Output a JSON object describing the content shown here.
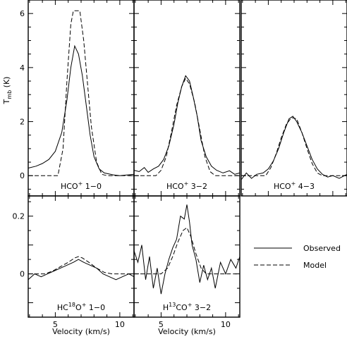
{
  "chart_data": {
    "type": "line",
    "x_ticks": [
      5,
      10
    ],
    "xlabel": "Velocity (km/s)",
    "ylabel_main": "T",
    "ylabel_sub": "mb",
    "ylabel_unit": "(K)",
    "legend": [
      {
        "label": "Observed",
        "style": "solid"
      },
      {
        "label": "Model",
        "style": "dashed"
      }
    ],
    "panels": [
      {
        "row": 0,
        "col": 0,
        "label_parts": [
          "HCO",
          "+",
          " 1−0"
        ],
        "xlim": [
          2.9,
          11.1
        ],
        "ylim": [
          -0.75,
          6.5
        ],
        "y_ticks": [
          0,
          2,
          4,
          6
        ],
        "observed": [
          [
            2.9,
            0.28
          ],
          [
            3.5,
            0.35
          ],
          [
            4.0,
            0.45
          ],
          [
            4.5,
            0.6
          ],
          [
            5.0,
            0.9
          ],
          [
            5.5,
            1.6
          ],
          [
            5.9,
            2.8
          ],
          [
            6.2,
            4.0
          ],
          [
            6.5,
            4.8
          ],
          [
            6.8,
            4.5
          ],
          [
            7.1,
            3.7
          ],
          [
            7.4,
            2.6
          ],
          [
            7.7,
            1.5
          ],
          [
            8.0,
            0.7
          ],
          [
            8.4,
            0.25
          ],
          [
            8.8,
            0.1
          ],
          [
            9.5,
            0.03
          ],
          [
            10.0,
            0.0
          ],
          [
            11.1,
            0.05
          ]
        ],
        "model": [
          [
            2.9,
            0.0
          ],
          [
            5.2,
            0.0
          ],
          [
            5.6,
            1.0
          ],
          [
            5.9,
            3.5
          ],
          [
            6.2,
            5.6
          ],
          [
            6.4,
            6.1
          ],
          [
            6.9,
            6.1
          ],
          [
            7.2,
            5.0
          ],
          [
            7.5,
            3.4
          ],
          [
            7.8,
            1.8
          ],
          [
            8.2,
            0.5
          ],
          [
            8.6,
            0.05
          ],
          [
            9.0,
            0.0
          ],
          [
            11.1,
            0.0
          ]
        ]
      },
      {
        "row": 0,
        "col": 1,
        "label_parts": [
          "HCO",
          "+",
          " 3−2"
        ],
        "xlim": [
          2.9,
          11.1
        ],
        "ylim": [
          -0.75,
          6.5
        ],
        "observed": [
          [
            2.9,
            0.2
          ],
          [
            3.3,
            0.15
          ],
          [
            3.7,
            0.3
          ],
          [
            4.0,
            0.12
          ],
          [
            4.4,
            0.25
          ],
          [
            4.8,
            0.35
          ],
          [
            5.2,
            0.6
          ],
          [
            5.6,
            1.1
          ],
          [
            6.0,
            1.9
          ],
          [
            6.3,
            2.7
          ],
          [
            6.6,
            3.3
          ],
          [
            6.9,
            3.7
          ],
          [
            7.2,
            3.5
          ],
          [
            7.5,
            2.9
          ],
          [
            7.8,
            2.2
          ],
          [
            8.1,
            1.3
          ],
          [
            8.5,
            0.7
          ],
          [
            8.9,
            0.35
          ],
          [
            9.3,
            0.2
          ],
          [
            9.8,
            0.1
          ],
          [
            10.3,
            0.18
          ],
          [
            10.7,
            0.05
          ],
          [
            11.1,
            0.1
          ]
        ],
        "model": [
          [
            2.9,
            0.0
          ],
          [
            4.6,
            0.0
          ],
          [
            5.0,
            0.2
          ],
          [
            5.4,
            0.7
          ],
          [
            5.8,
            1.6
          ],
          [
            6.2,
            2.6
          ],
          [
            6.6,
            3.3
          ],
          [
            6.9,
            3.6
          ],
          [
            7.2,
            3.4
          ],
          [
            7.6,
            2.7
          ],
          [
            8.0,
            1.7
          ],
          [
            8.4,
            0.7
          ],
          [
            8.8,
            0.15
          ],
          [
            9.2,
            0.0
          ],
          [
            11.1,
            0.0
          ]
        ]
      },
      {
        "row": 0,
        "col": 2,
        "label_parts": [
          "HCO",
          "+",
          " 4−3"
        ],
        "xlim": [
          2.9,
          11.1
        ],
        "ylim": [
          -0.75,
          6.5
        ],
        "observed": [
          [
            2.9,
            -0.15
          ],
          [
            3.3,
            0.1
          ],
          [
            3.7,
            -0.1
          ],
          [
            4.1,
            0.05
          ],
          [
            4.6,
            0.1
          ],
          [
            5.0,
            0.25
          ],
          [
            5.4,
            0.55
          ],
          [
            5.8,
            1.0
          ],
          [
            6.2,
            1.6
          ],
          [
            6.6,
            2.1
          ],
          [
            6.9,
            2.2
          ],
          [
            7.2,
            2.0
          ],
          [
            7.6,
            1.6
          ],
          [
            8.0,
            1.1
          ],
          [
            8.4,
            0.6
          ],
          [
            8.8,
            0.25
          ],
          [
            9.2,
            0.05
          ],
          [
            9.6,
            -0.05
          ],
          [
            10.0,
            0.0
          ],
          [
            10.5,
            -0.1
          ],
          [
            11.1,
            0.05
          ]
        ],
        "model": [
          [
            2.9,
            0.0
          ],
          [
            4.8,
            0.0
          ],
          [
            5.2,
            0.3
          ],
          [
            5.6,
            0.8
          ],
          [
            6.0,
            1.4
          ],
          [
            6.4,
            1.9
          ],
          [
            6.8,
            2.15
          ],
          [
            7.2,
            2.1
          ],
          [
            7.6,
            1.6
          ],
          [
            8.0,
            1.0
          ],
          [
            8.4,
            0.45
          ],
          [
            8.8,
            0.1
          ],
          [
            9.2,
            0.0
          ],
          [
            11.1,
            0.0
          ]
        ]
      },
      {
        "row": 1,
        "col": 0,
        "label_parts": [
          "HC",
          "18",
          "O",
          "+",
          " 1−0"
        ],
        "xlim": [
          2.9,
          11.1
        ],
        "ylim": [
          -0.15,
          0.27
        ],
        "y_ticks": [
          0,
          0.2
        ],
        "observed": [
          [
            2.9,
            -0.02
          ],
          [
            3.4,
            0.0
          ],
          [
            3.9,
            -0.01
          ],
          [
            4.4,
            0.0
          ],
          [
            4.9,
            0.01
          ],
          [
            5.4,
            0.02
          ],
          [
            5.9,
            0.03
          ],
          [
            6.4,
            0.04
          ],
          [
            6.8,
            0.05
          ],
          [
            7.2,
            0.04
          ],
          [
            7.7,
            0.03
          ],
          [
            8.2,
            0.02
          ],
          [
            8.7,
            0.0
          ],
          [
            9.2,
            -0.01
          ],
          [
            9.7,
            -0.02
          ],
          [
            10.2,
            -0.01
          ],
          [
            10.7,
            0.0
          ],
          [
            11.1,
            -0.01
          ]
        ],
        "model": [
          [
            2.9,
            0.0
          ],
          [
            4.2,
            0.0
          ],
          [
            4.8,
            0.01
          ],
          [
            5.4,
            0.025
          ],
          [
            6.0,
            0.04
          ],
          [
            6.5,
            0.055
          ],
          [
            6.8,
            0.06
          ],
          [
            7.1,
            0.055
          ],
          [
            7.6,
            0.04
          ],
          [
            8.2,
            0.02
          ],
          [
            8.8,
            0.005
          ],
          [
            9.4,
            0.0
          ],
          [
            11.1,
            0.0
          ]
        ]
      },
      {
        "row": 1,
        "col": 1,
        "label_parts": [
          "H",
          "13",
          "CO",
          "+",
          " 3−2"
        ],
        "xlim": [
          2.9,
          11.1
        ],
        "ylim": [
          -0.15,
          0.27
        ],
        "observed": [
          [
            2.9,
            0.08
          ],
          [
            3.2,
            0.04
          ],
          [
            3.5,
            0.1
          ],
          [
            3.8,
            -0.02
          ],
          [
            4.1,
            0.06
          ],
          [
            4.4,
            -0.05
          ],
          [
            4.7,
            0.02
          ],
          [
            5.0,
            -0.07
          ],
          [
            5.3,
            0.0
          ],
          [
            5.6,
            0.05
          ],
          [
            5.9,
            0.09
          ],
          [
            6.2,
            0.12
          ],
          [
            6.5,
            0.2
          ],
          [
            6.8,
            0.19
          ],
          [
            7.0,
            0.24
          ],
          [
            7.2,
            0.18
          ],
          [
            7.4,
            0.1
          ],
          [
            7.7,
            0.05
          ],
          [
            8.0,
            -0.03
          ],
          [
            8.3,
            0.03
          ],
          [
            8.6,
            -0.02
          ],
          [
            8.9,
            0.02
          ],
          [
            9.2,
            -0.05
          ],
          [
            9.6,
            0.04
          ],
          [
            10.0,
            0.0
          ],
          [
            10.4,
            0.05
          ],
          [
            10.8,
            0.02
          ],
          [
            11.1,
            0.06
          ]
        ],
        "model": [
          [
            2.9,
            0.0
          ],
          [
            5.0,
            0.0
          ],
          [
            5.5,
            0.02
          ],
          [
            5.9,
            0.06
          ],
          [
            6.3,
            0.11
          ],
          [
            6.7,
            0.15
          ],
          [
            7.0,
            0.16
          ],
          [
            7.3,
            0.13
          ],
          [
            7.7,
            0.07
          ],
          [
            8.1,
            0.02
          ],
          [
            8.5,
            0.0
          ],
          [
            11.1,
            0.0
          ]
        ]
      }
    ]
  }
}
